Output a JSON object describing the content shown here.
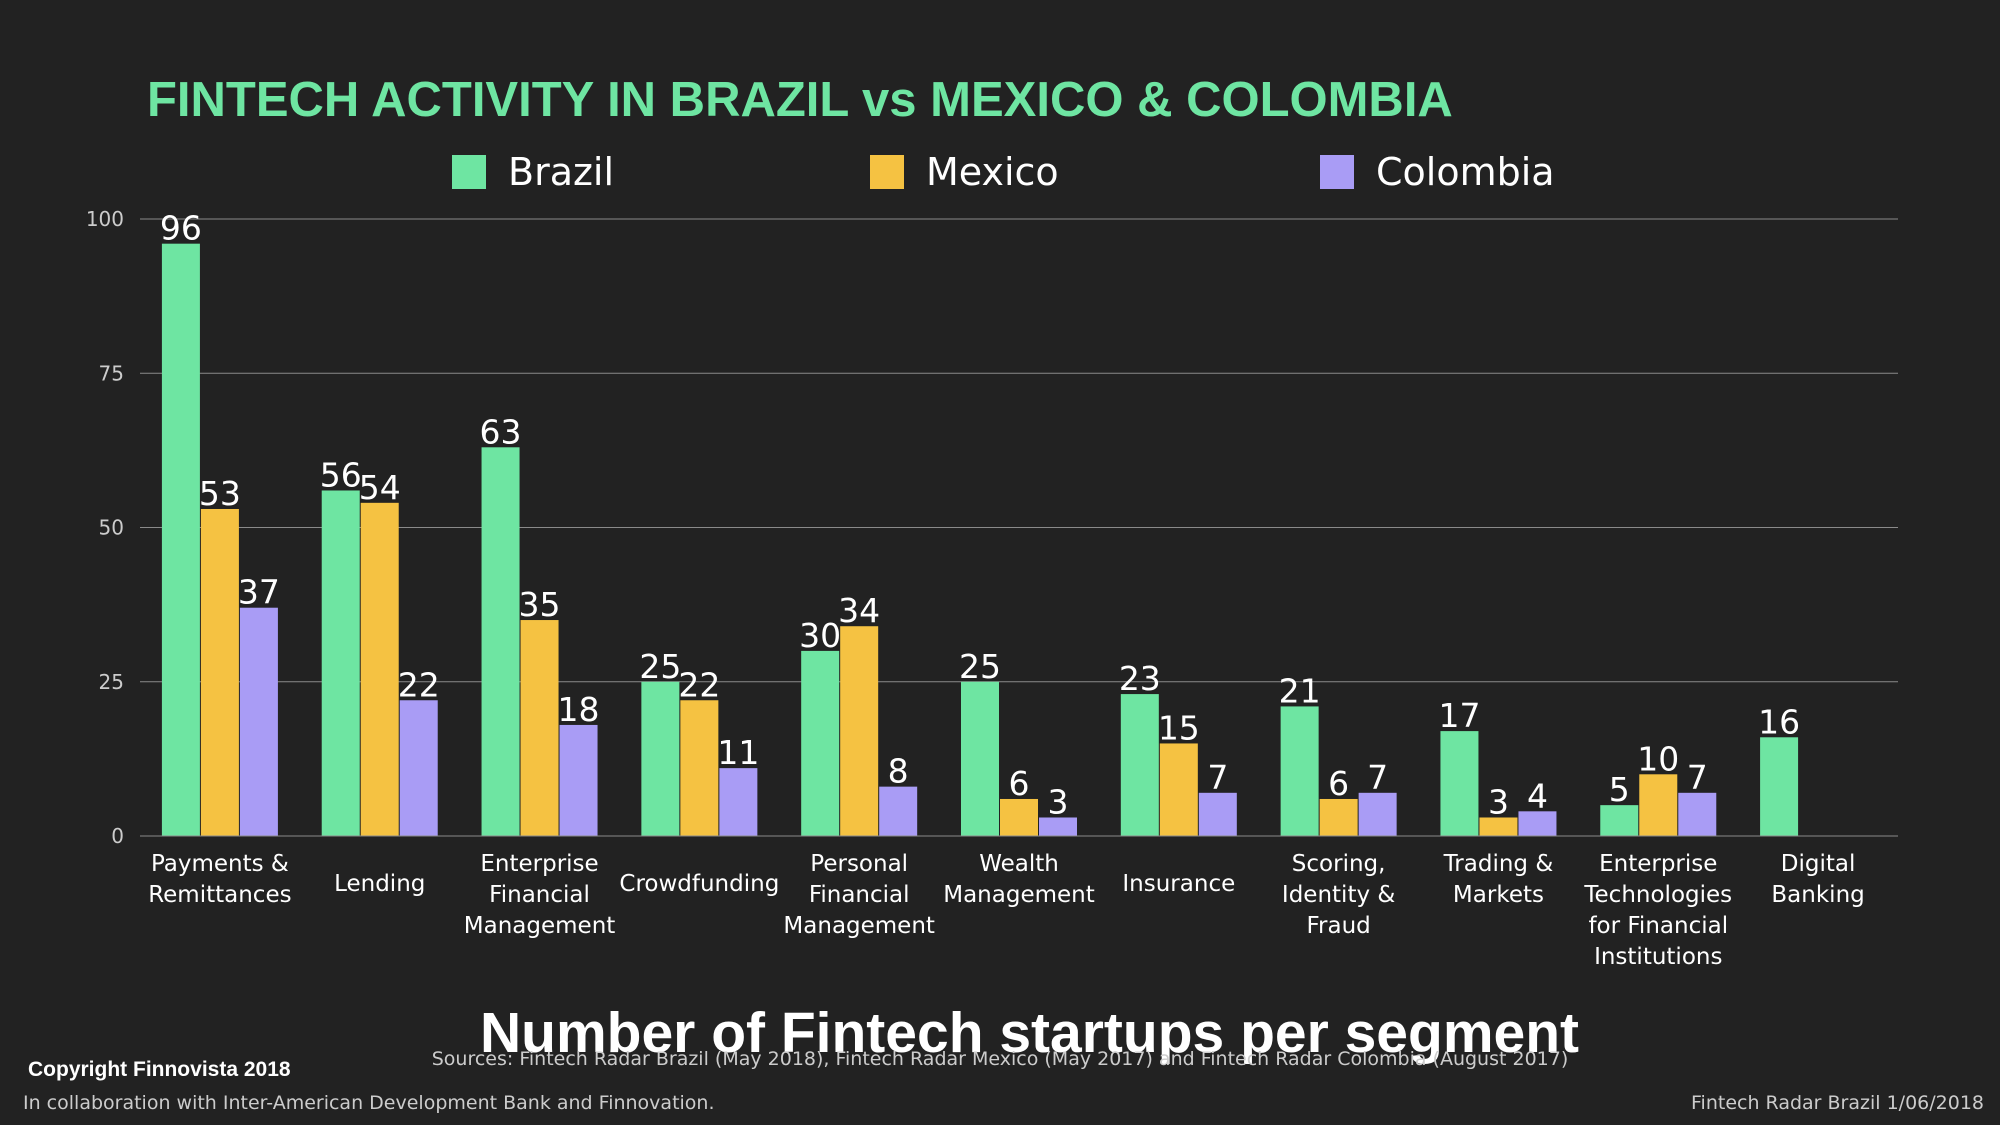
{
  "page": {
    "title": "FINTECH ACTIVITY IN BRAZIL vs MEXICO & COLOMBIA",
    "xlabel": "Number of Fintech startups per segment",
    "sources": "Sources: Fintech Radar Brazil (May 2018), Fintech Radar Mexico (May 2017) and Fintech Radar Colombia (August 2017)",
    "copyright": "Copyright Finnovista 2018",
    "collaboration": "In collaboration with Inter-American Development Bank and Finnovation.",
    "footer_right": "Fintech Radar Brazil 1/06/2018"
  },
  "colors": {
    "background": "#222222",
    "title": "#6ee5a2",
    "brazil": "#6ee5a2",
    "mexico": "#f5c242",
    "colombia": "#a99cf5",
    "grid": "#8a8a8a"
  },
  "chart_data": {
    "type": "bar",
    "title": "FINTECH ACTIVITY IN BRAZIL vs MEXICO & COLOMBIA",
    "xlabel": "Number of Fintech startups per segment",
    "ylabel": "",
    "ylim": [
      0,
      100
    ],
    "yticks": [
      "0",
      "25",
      "50",
      "75",
      "100"
    ],
    "grid": true,
    "legend_position": "top",
    "categories": [
      [
        "Payments &",
        "Remittances"
      ],
      [
        "Lending"
      ],
      [
        "Enterprise",
        "Financial",
        "Management"
      ],
      [
        "Crowdfunding"
      ],
      [
        "Personal",
        "Financial",
        "Management"
      ],
      [
        "Wealth",
        "Management"
      ],
      [
        "Insurance"
      ],
      [
        "Scoring,",
        "Identity &",
        "Fraud"
      ],
      [
        "Trading &",
        "Markets"
      ],
      [
        "Enterprise",
        "Technologies",
        "for Financial",
        "Institutions"
      ],
      [
        "Digital",
        "Banking"
      ]
    ],
    "series": [
      {
        "name": "Brazil",
        "color": "#6ee5a2",
        "values": [
          96,
          56,
          63,
          25,
          30,
          25,
          23,
          21,
          17,
          5,
          16
        ]
      },
      {
        "name": "Mexico",
        "color": "#f5c242",
        "values": [
          53,
          54,
          35,
          22,
          34,
          6,
          15,
          6,
          3,
          10,
          null
        ]
      },
      {
        "name": "Colombia",
        "color": "#a99cf5",
        "values": [
          37,
          22,
          18,
          11,
          8,
          3,
          7,
          7,
          4,
          7,
          null
        ]
      }
    ]
  }
}
